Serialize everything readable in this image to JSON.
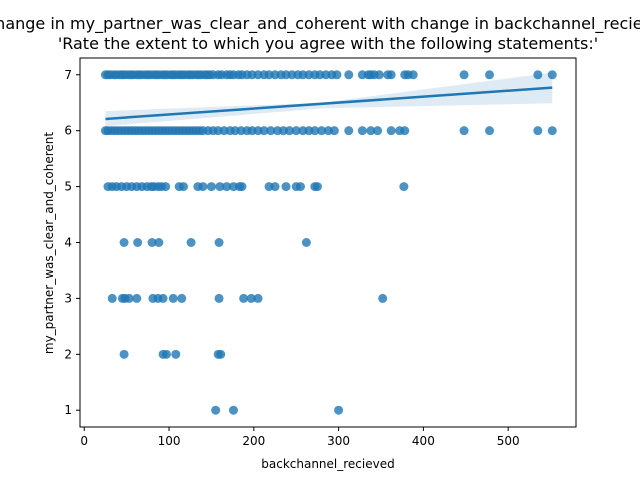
{
  "chart_data": {
    "type": "scatter",
    "title_line1": "Change in my_partner_was_clear_and_coherent with change in backchannel_recieved",
    "title_line2": "'Rate the extent to which you agree with the following statements:'",
    "xlabel": "backchannel_recieved",
    "ylabel": "my_partner_was_clear_and_coherent",
    "xlim": [
      -5,
      580
    ],
    "ylim": [
      0.7,
      7.3
    ],
    "xticks": [
      0,
      100,
      200,
      300,
      400,
      500
    ],
    "yticks": [
      1,
      2,
      3,
      4,
      5,
      6,
      7
    ],
    "grid": false,
    "legend": "none",
    "point_color": "#1f77b4",
    "regression": {
      "x": [
        25,
        552
      ],
      "y": [
        6.21,
        6.77
      ],
      "ci_low_end": [
        6.08,
        6.49
      ],
      "ci_high_end": [
        6.35,
        7.04
      ],
      "ci_mid": 280,
      "ci_mid_low": [
        6.4,
        6.5
      ]
    },
    "points": [
      [
        25,
        7
      ],
      [
        28,
        7
      ],
      [
        31,
        7
      ],
      [
        35,
        7
      ],
      [
        38,
        7
      ],
      [
        42,
        7
      ],
      [
        45,
        7
      ],
      [
        48,
        7
      ],
      [
        52,
        7
      ],
      [
        55,
        7
      ],
      [
        58,
        7
      ],
      [
        62,
        7
      ],
      [
        65,
        7
      ],
      [
        68,
        7
      ],
      [
        72,
        7
      ],
      [
        75,
        7
      ],
      [
        78,
        7
      ],
      [
        82,
        7
      ],
      [
        85,
        7
      ],
      [
        88,
        7
      ],
      [
        92,
        7
      ],
      [
        95,
        7
      ],
      [
        98,
        7
      ],
      [
        102,
        7
      ],
      [
        105,
        7
      ],
      [
        108,
        7
      ],
      [
        112,
        7
      ],
      [
        115,
        7
      ],
      [
        118,
        7
      ],
      [
        122,
        7
      ],
      [
        125,
        7
      ],
      [
        128,
        7
      ],
      [
        132,
        7
      ],
      [
        135,
        7
      ],
      [
        138,
        7
      ],
      [
        142,
        7
      ],
      [
        145,
        7
      ],
      [
        148,
        7
      ],
      [
        152,
        7
      ],
      [
        158,
        7
      ],
      [
        162,
        7
      ],
      [
        168,
        7
      ],
      [
        172,
        7
      ],
      [
        176,
        7
      ],
      [
        182,
        7
      ],
      [
        186,
        7
      ],
      [
        192,
        7
      ],
      [
        198,
        7
      ],
      [
        205,
        7
      ],
      [
        212,
        7
      ],
      [
        218,
        7
      ],
      [
        225,
        7
      ],
      [
        232,
        7
      ],
      [
        238,
        7
      ],
      [
        245,
        7
      ],
      [
        252,
        7
      ],
      [
        258,
        7
      ],
      [
        265,
        7
      ],
      [
        272,
        7
      ],
      [
        278,
        7
      ],
      [
        285,
        7
      ],
      [
        292,
        7
      ],
      [
        298,
        7
      ],
      [
        312,
        7
      ],
      [
        328,
        7
      ],
      [
        335,
        7
      ],
      [
        338,
        7
      ],
      [
        342,
        7
      ],
      [
        348,
        7
      ],
      [
        358,
        7
      ],
      [
        362,
        7
      ],
      [
        378,
        7
      ],
      [
        382,
        7
      ],
      [
        388,
        7
      ],
      [
        448,
        7
      ],
      [
        478,
        7
      ],
      [
        535,
        7
      ],
      [
        552,
        7
      ],
      [
        25,
        6
      ],
      [
        28,
        6
      ],
      [
        32,
        6
      ],
      [
        36,
        6
      ],
      [
        40,
        6
      ],
      [
        44,
        6
      ],
      [
        48,
        6
      ],
      [
        52,
        6
      ],
      [
        56,
        6
      ],
      [
        60,
        6
      ],
      [
        64,
        6
      ],
      [
        68,
        6
      ],
      [
        72,
        6
      ],
      [
        76,
        6
      ],
      [
        80,
        6
      ],
      [
        84,
        6
      ],
      [
        88,
        6
      ],
      [
        92,
        6
      ],
      [
        96,
        6
      ],
      [
        100,
        6
      ],
      [
        104,
        6
      ],
      [
        108,
        6
      ],
      [
        112,
        6
      ],
      [
        116,
        6
      ],
      [
        120,
        6
      ],
      [
        124,
        6
      ],
      [
        128,
        6
      ],
      [
        132,
        6
      ],
      [
        136,
        6
      ],
      [
        140,
        6
      ],
      [
        146,
        6
      ],
      [
        152,
        6
      ],
      [
        158,
        6
      ],
      [
        165,
        6
      ],
      [
        172,
        6
      ],
      [
        178,
        6
      ],
      [
        185,
        6
      ],
      [
        192,
        6
      ],
      [
        198,
        6
      ],
      [
        205,
        6
      ],
      [
        212,
        6
      ],
      [
        220,
        6
      ],
      [
        228,
        6
      ],
      [
        235,
        6
      ],
      [
        242,
        6
      ],
      [
        250,
        6
      ],
      [
        258,
        6
      ],
      [
        265,
        6
      ],
      [
        272,
        6
      ],
      [
        280,
        6
      ],
      [
        288,
        6
      ],
      [
        295,
        6
      ],
      [
        312,
        6
      ],
      [
        328,
        6
      ],
      [
        338,
        6
      ],
      [
        346,
        6
      ],
      [
        362,
        6
      ],
      [
        372,
        6
      ],
      [
        378,
        6
      ],
      [
        448,
        6
      ],
      [
        478,
        6
      ],
      [
        535,
        6
      ],
      [
        552,
        6
      ],
      [
        28,
        5
      ],
      [
        33,
        5
      ],
      [
        38,
        5
      ],
      [
        44,
        5
      ],
      [
        50,
        5
      ],
      [
        56,
        5
      ],
      [
        62,
        5
      ],
      [
        68,
        5
      ],
      [
        74,
        5
      ],
      [
        79,
        5
      ],
      [
        82,
        5
      ],
      [
        87,
        5
      ],
      [
        91,
        5
      ],
      [
        96,
        5
      ],
      [
        112,
        5
      ],
      [
        117,
        5
      ],
      [
        134,
        5
      ],
      [
        140,
        5
      ],
      [
        150,
        5
      ],
      [
        160,
        5
      ],
      [
        168,
        5
      ],
      [
        176,
        5
      ],
      [
        183,
        5
      ],
      [
        186,
        5
      ],
      [
        218,
        5
      ],
      [
        225,
        5
      ],
      [
        238,
        5
      ],
      [
        250,
        5
      ],
      [
        255,
        5
      ],
      [
        272,
        5
      ],
      [
        275,
        5
      ],
      [
        377,
        5
      ],
      [
        47,
        4
      ],
      [
        63,
        4
      ],
      [
        80,
        4
      ],
      [
        88,
        4
      ],
      [
        126,
        4
      ],
      [
        159,
        4
      ],
      [
        262,
        4
      ],
      [
        33,
        3
      ],
      [
        45,
        3
      ],
      [
        48,
        3
      ],
      [
        53,
        3
      ],
      [
        62,
        3
      ],
      [
        81,
        3
      ],
      [
        87,
        3
      ],
      [
        93,
        3
      ],
      [
        105,
        3
      ],
      [
        115,
        3
      ],
      [
        159,
        3
      ],
      [
        188,
        3
      ],
      [
        197,
        3
      ],
      [
        205,
        3
      ],
      [
        352,
        3
      ],
      [
        47,
        2
      ],
      [
        93,
        2
      ],
      [
        97,
        2
      ],
      [
        108,
        2
      ],
      [
        158,
        2
      ],
      [
        161,
        2
      ],
      [
        155,
        1
      ],
      [
        176,
        1
      ],
      [
        300,
        1
      ]
    ]
  }
}
